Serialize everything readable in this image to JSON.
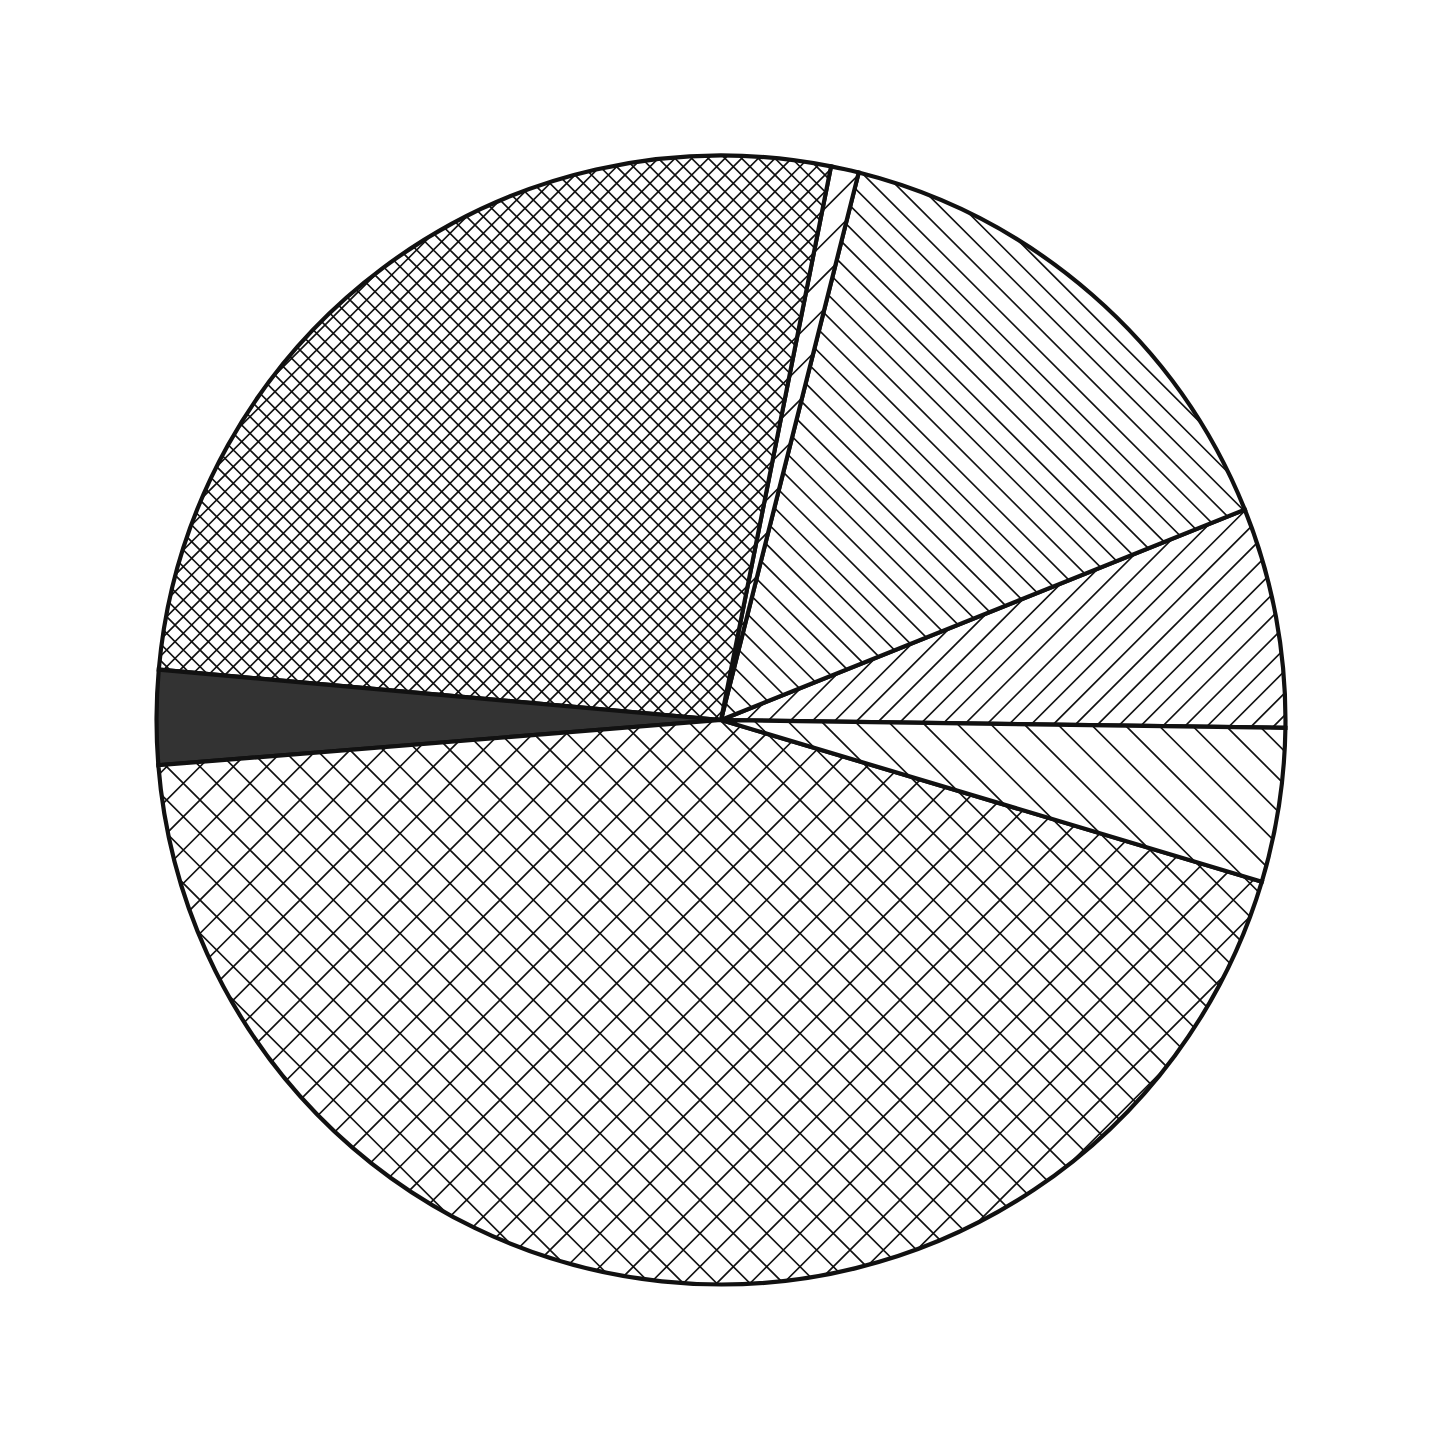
{
  "chart_data": {
    "type": "pie",
    "categories": [
      null,
      null,
      null,
      null,
      null,
      null,
      null
    ],
    "values": [
      6.3,
      15.0,
      0.8,
      26.7,
      2.7,
      44.1,
      4.4
    ],
    "colors": [
      "#111111",
      "#111111",
      "#111111",
      "#111111",
      "#333333",
      "#111111",
      "#111111"
    ]
  }
}
